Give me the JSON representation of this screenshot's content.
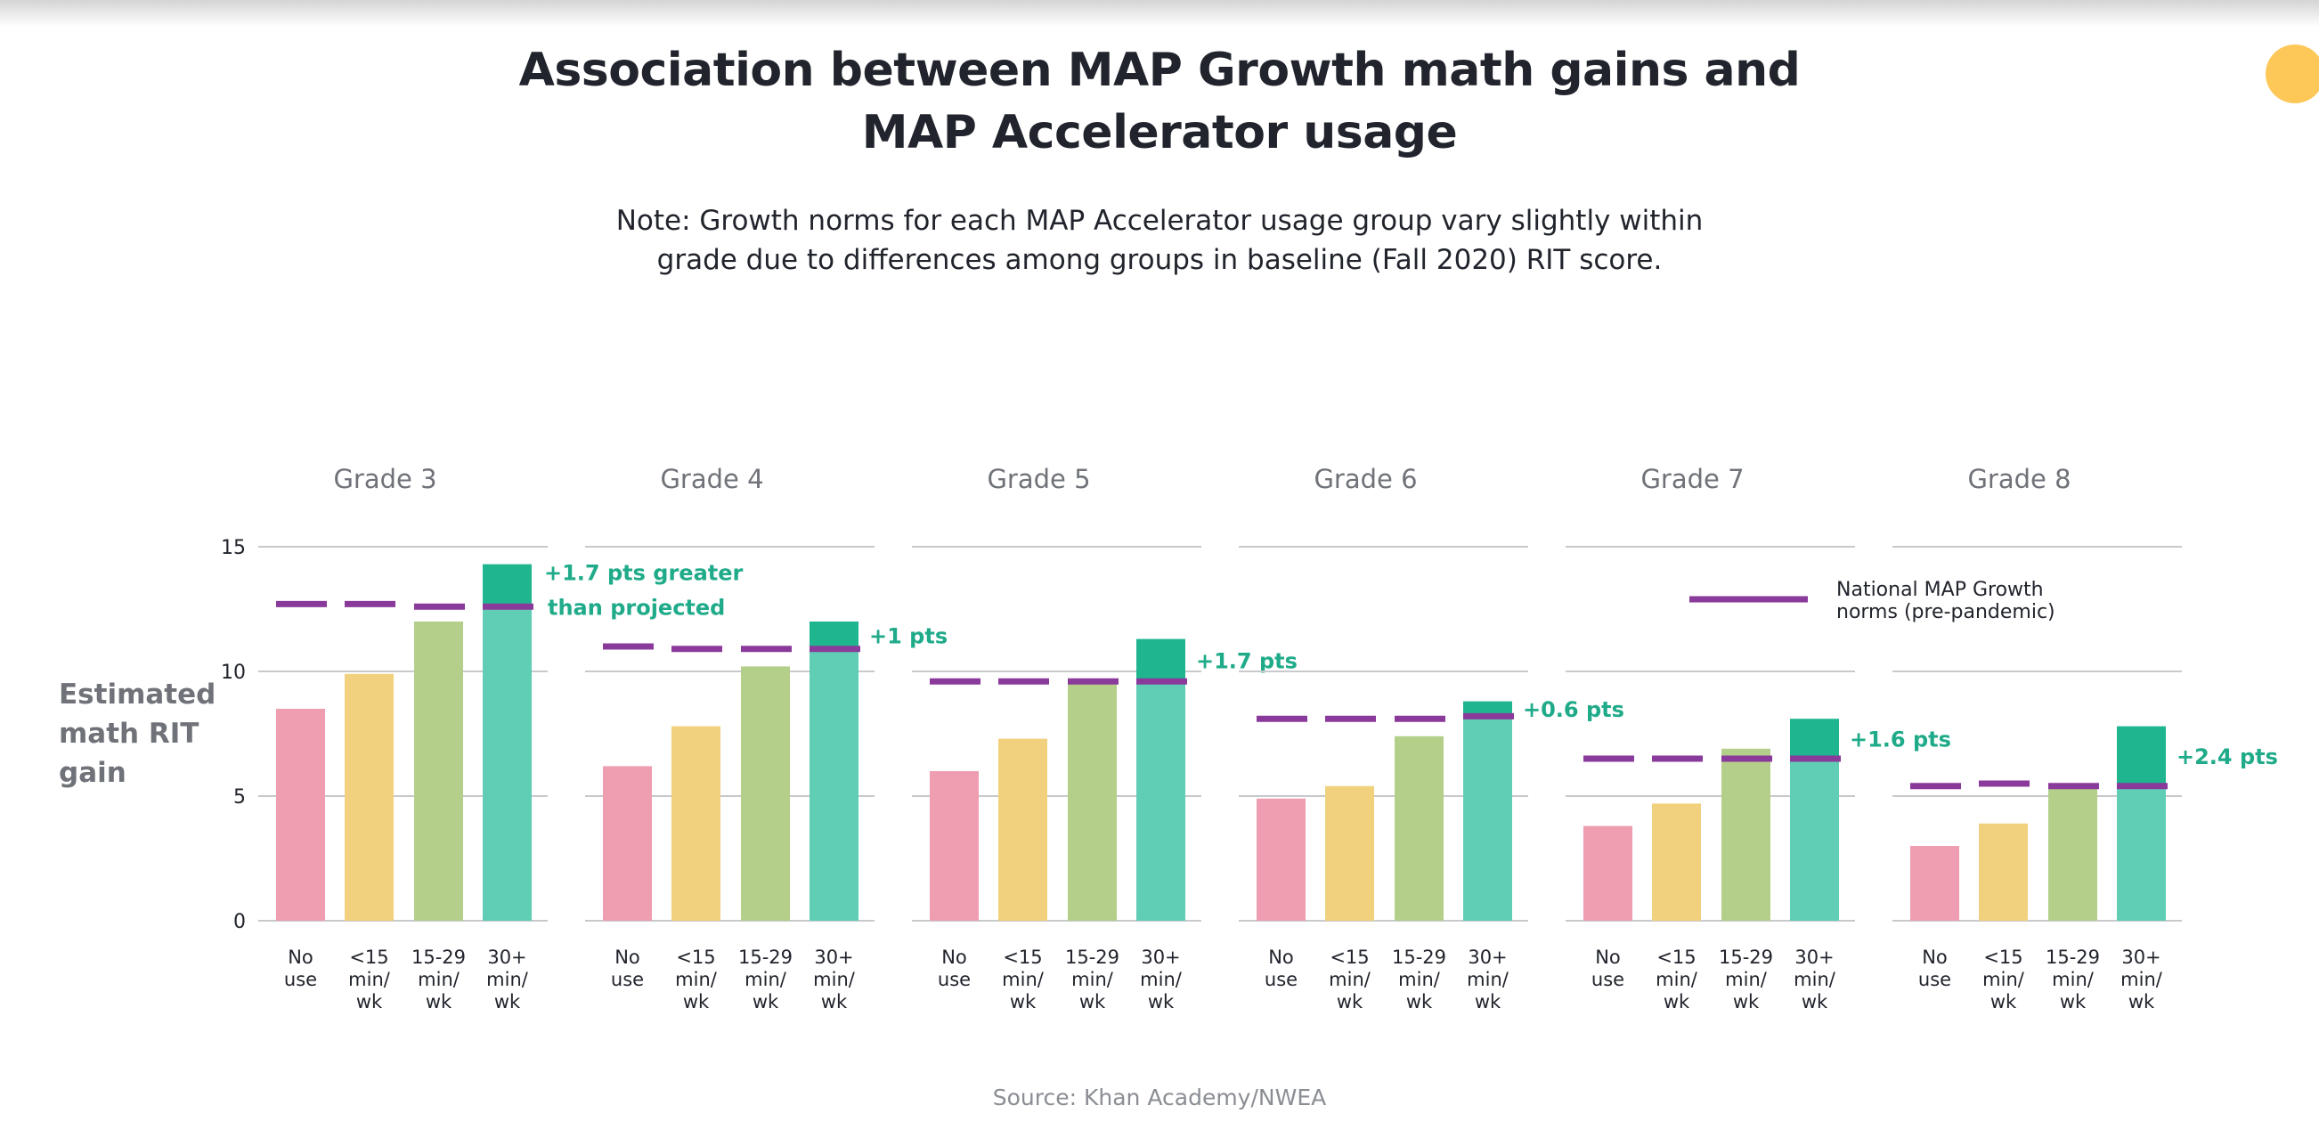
{
  "title_lines": [
    "Association between MAP Growth math gains and",
    "MAP Accelerator usage"
  ],
  "note_lines": [
    "Note: Growth norms for each MAP Accelerator usage group vary slightly within",
    "grade due to differences among groups in baseline (Fall 2020) RIT score."
  ],
  "source": "Source: Khan Academy/NWEA",
  "colors": {
    "no_use": "#ef9db0",
    "lt15": "#f2d17e",
    "m15_29": "#b3cf8a",
    "m30plus": "#60ceb4",
    "gain": "#1fb68f",
    "norm": "#8a3a9a",
    "annotation": "#1fab89",
    "gridline": "#c8c9cc"
  },
  "chart_data": {
    "type": "bar",
    "ylabel_lines": [
      "Estimated",
      "math RIT",
      "gain"
    ],
    "ylim": [
      0,
      15
    ],
    "yticks": [
      0,
      5,
      10,
      15
    ],
    "grid": true,
    "categories": [
      [
        "No",
        "use"
      ],
      [
        "<15",
        "min/",
        "wk"
      ],
      [
        "15-29",
        "min/",
        "wk"
      ],
      [
        "30+",
        "min/",
        "wk"
      ]
    ],
    "legend": {
      "label_lines": [
        "National MAP Growth",
        "norms (pre-pandemic)"
      ],
      "placement": "top-right"
    },
    "panels": [
      {
        "title": "Grade 3",
        "values": [
          8.5,
          9.9,
          12.0,
          14.3
        ],
        "norms": [
          12.7,
          12.7,
          12.6,
          12.6
        ],
        "annotation_lines": [
          "+1.7 pts greater",
          "than projected"
        ]
      },
      {
        "title": "Grade 4",
        "values": [
          6.2,
          7.8,
          10.2,
          12.0
        ],
        "norms": [
          11.0,
          10.9,
          10.9,
          10.9
        ],
        "annotation_lines": [
          "+1 pts"
        ]
      },
      {
        "title": "Grade 5",
        "values": [
          6.0,
          7.3,
          9.7,
          11.3
        ],
        "norms": [
          9.6,
          9.6,
          9.6,
          9.6
        ],
        "annotation_lines": [
          "+1.7 pts"
        ]
      },
      {
        "title": "Grade 6",
        "values": [
          4.9,
          5.4,
          7.4,
          8.8
        ],
        "norms": [
          8.1,
          8.1,
          8.1,
          8.2
        ],
        "annotation_lines": [
          "+0.6 pts"
        ]
      },
      {
        "title": "Grade 7",
        "values": [
          3.8,
          4.7,
          6.9,
          8.1
        ],
        "norms": [
          6.5,
          6.5,
          6.5,
          6.5
        ],
        "annotation_lines": [
          "+1.6 pts"
        ]
      },
      {
        "title": "Grade 8",
        "values": [
          3.0,
          3.9,
          5.3,
          7.8
        ],
        "norms": [
          5.4,
          5.5,
          5.4,
          5.4
        ],
        "annotation_lines": [
          "+2.4 pts"
        ]
      }
    ]
  }
}
